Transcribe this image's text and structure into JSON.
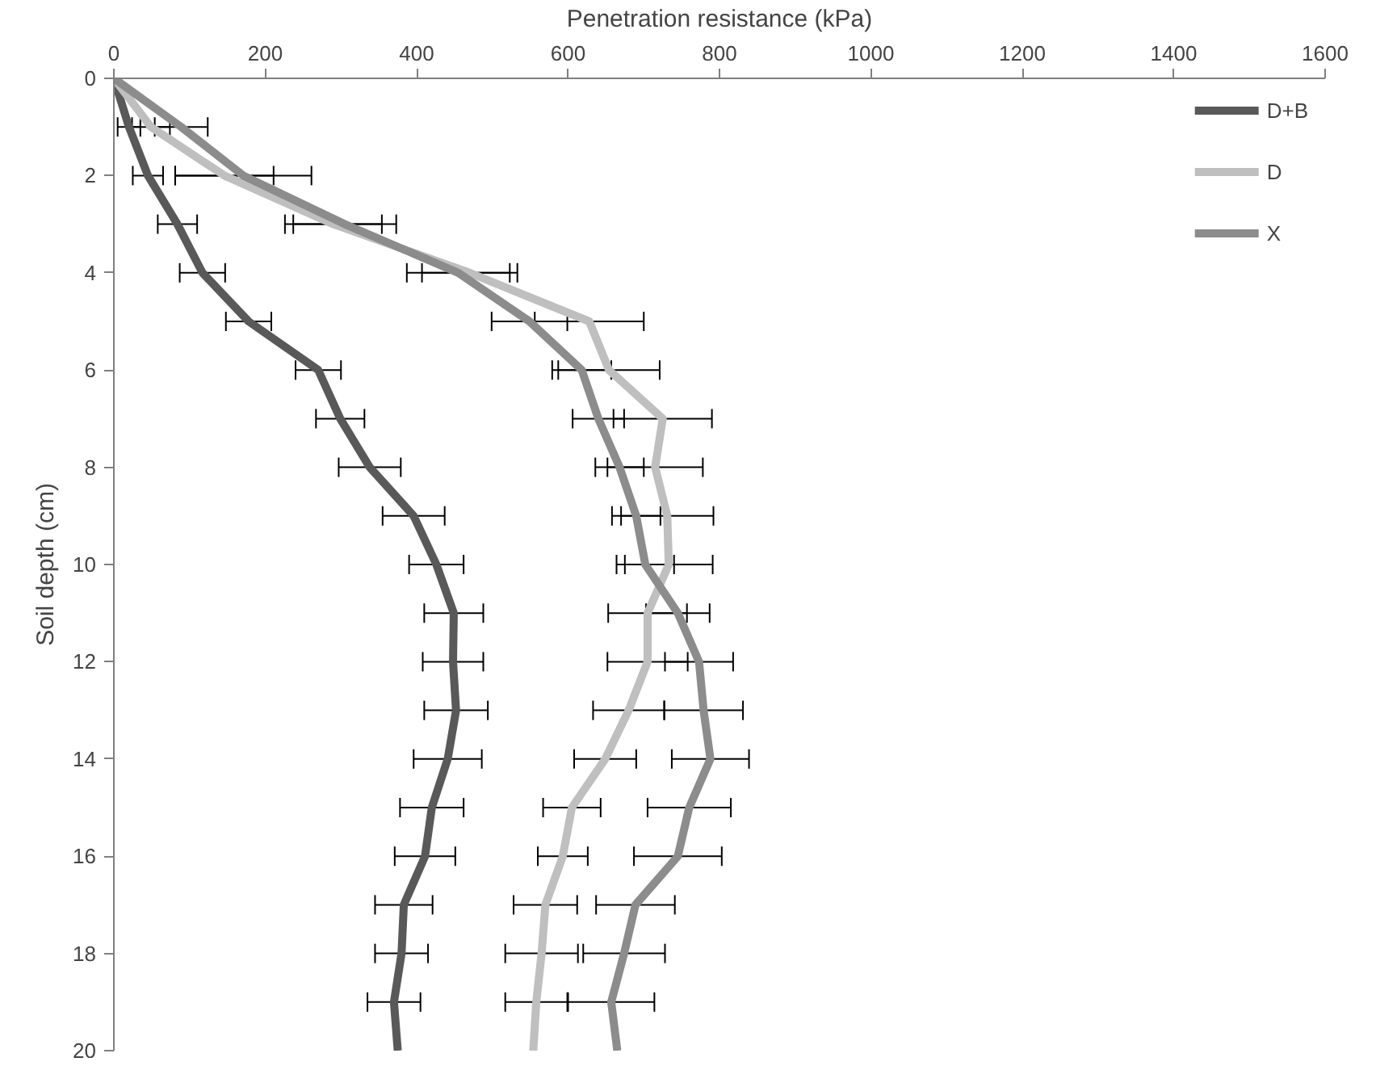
{
  "chart_data": {
    "type": "line",
    "xlabel": "Penetration resistance (kPa)",
    "ylabel": "Soil depth (cm)",
    "xlim": [
      0,
      1600
    ],
    "xticks": [
      0,
      200,
      400,
      600,
      800,
      1000,
      1200,
      1400,
      1600
    ],
    "ylim": [
      20,
      0
    ],
    "yticks": [
      0,
      2,
      4,
      6,
      8,
      10,
      12,
      14,
      16,
      18,
      20
    ],
    "grid": false,
    "legend": "top right",
    "marker": "none",
    "line_style": "solid",
    "series": [
      {
        "name": "D+B",
        "color": "#595959",
        "x": [
          0,
          20,
          45,
          84,
          117,
          178,
          270,
          299,
          338,
          396,
          426,
          449,
          448,
          452,
          441,
          420,
          411,
          383,
          380,
          370,
          375
        ],
        "values": [
          0,
          1,
          2,
          3,
          4,
          5,
          6,
          7,
          8,
          9,
          10,
          11,
          12,
          13,
          14,
          15,
          16,
          17,
          18,
          19,
          20
        ],
        "xerrors": [
          null,
          15,
          20,
          26,
          30,
          30,
          30,
          32,
          41,
          41,
          36,
          39,
          40,
          42,
          45,
          42,
          40,
          38,
          35,
          35,
          null
        ]
      },
      {
        "name": "D",
        "color": "#bfbfbf",
        "x": [
          0,
          49,
          146,
          290,
          470,
          628,
          654,
          725,
          715,
          731,
          733,
          705,
          705,
          680,
          649,
          605,
          593,
          570,
          565,
          558,
          554
        ],
        "values": [
          0,
          1,
          2,
          3,
          4,
          5,
          6,
          7,
          8,
          9,
          10,
          11,
          12,
          13,
          14,
          15,
          16,
          17,
          18,
          19,
          20
        ],
        "xerrors": [
          null,
          25,
          65,
          64,
          63,
          72,
          67,
          65,
          63,
          61,
          58,
          52,
          53,
          47,
          41,
          38,
          33,
          42,
          48,
          41,
          null
        ]
      },
      {
        "name": "X",
        "color": "#8c8c8c",
        "x": [
          0,
          89,
          171,
          305,
          455,
          549,
          618,
          640,
          668,
          690,
          702,
          745,
          773,
          779,
          788,
          760,
          745,
          689,
          674,
          657,
          665
        ],
        "values": [
          0,
          1,
          2,
          3,
          4,
          5,
          6,
          7,
          8,
          9,
          10,
          11,
          12,
          13,
          14,
          15,
          16,
          17,
          18,
          19,
          20
        ],
        "xerrors": [
          null,
          35,
          90,
          68,
          68,
          50,
          39,
          34,
          32,
          32,
          38,
          42,
          45,
          52,
          51,
          55,
          58,
          52,
          54,
          57,
          null
        ]
      }
    ]
  }
}
